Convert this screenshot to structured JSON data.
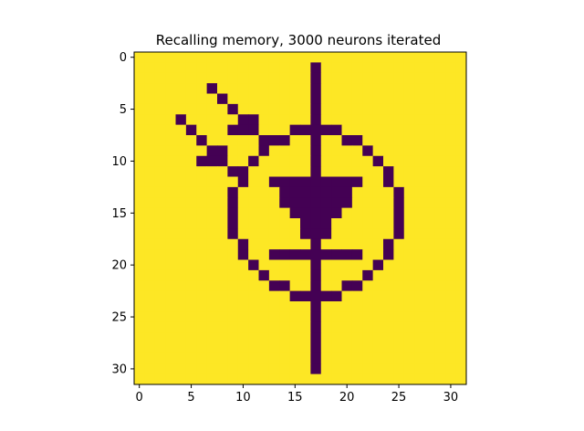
{
  "chart_data": {
    "type": "heatmap",
    "title": "Recalling memory, 3000 neurons iterated",
    "xlabel": "",
    "ylabel": "",
    "xlim": [
      -0.5,
      31.5
    ],
    "ylim": [
      31.5,
      -0.5
    ],
    "x_ticks": [
      0,
      5,
      10,
      15,
      20,
      25,
      30
    ],
    "y_ticks": [
      0,
      5,
      10,
      15,
      20,
      25,
      30
    ],
    "colors": {
      "low": "#440154",
      "high": "#fde725"
    },
    "grid": false,
    "rows": 32,
    "cols": 32,
    "low_cells": [
      [
        1,
        17
      ],
      [
        2,
        17
      ],
      [
        3,
        7
      ],
      [
        3,
        17
      ],
      [
        4,
        8
      ],
      [
        4,
        17
      ],
      [
        5,
        9
      ],
      [
        5,
        17
      ],
      [
        6,
        4
      ],
      [
        6,
        10
      ],
      [
        6,
        11
      ],
      [
        6,
        17
      ],
      [
        7,
        5
      ],
      [
        7,
        9
      ],
      [
        7,
        10
      ],
      [
        7,
        11
      ],
      [
        7,
        15
      ],
      [
        7,
        16
      ],
      [
        7,
        17
      ],
      [
        7,
        18
      ],
      [
        7,
        19
      ],
      [
        8,
        6
      ],
      [
        8,
        12
      ],
      [
        8,
        13
      ],
      [
        8,
        14
      ],
      [
        8,
        17
      ],
      [
        8,
        20
      ],
      [
        8,
        21
      ],
      [
        9,
        7
      ],
      [
        9,
        8
      ],
      [
        9,
        12
      ],
      [
        9,
        17
      ],
      [
        9,
        22
      ],
      [
        10,
        6
      ],
      [
        10,
        7
      ],
      [
        10,
        8
      ],
      [
        10,
        11
      ],
      [
        10,
        17
      ],
      [
        10,
        23
      ],
      [
        11,
        9
      ],
      [
        11,
        10
      ],
      [
        11,
        17
      ],
      [
        11,
        24
      ],
      [
        12,
        10
      ],
      [
        12,
        13
      ],
      [
        12,
        14
      ],
      [
        12,
        15
      ],
      [
        12,
        16
      ],
      [
        12,
        17
      ],
      [
        12,
        18
      ],
      [
        12,
        19
      ],
      [
        12,
        20
      ],
      [
        12,
        21
      ],
      [
        12,
        24
      ],
      [
        13,
        9
      ],
      [
        13,
        14
      ],
      [
        13,
        15
      ],
      [
        13,
        16
      ],
      [
        13,
        17
      ],
      [
        13,
        18
      ],
      [
        13,
        19
      ],
      [
        13,
        20
      ],
      [
        13,
        25
      ],
      [
        14,
        9
      ],
      [
        14,
        14
      ],
      [
        14,
        15
      ],
      [
        14,
        16
      ],
      [
        14,
        17
      ],
      [
        14,
        18
      ],
      [
        14,
        19
      ],
      [
        14,
        20
      ],
      [
        14,
        25
      ],
      [
        15,
        9
      ],
      [
        15,
        15
      ],
      [
        15,
        16
      ],
      [
        15,
        17
      ],
      [
        15,
        18
      ],
      [
        15,
        19
      ],
      [
        15,
        25
      ],
      [
        16,
        9
      ],
      [
        16,
        16
      ],
      [
        16,
        17
      ],
      [
        16,
        18
      ],
      [
        16,
        25
      ],
      [
        17,
        9
      ],
      [
        17,
        16
      ],
      [
        17,
        17
      ],
      [
        17,
        18
      ],
      [
        17,
        25
      ],
      [
        18,
        10
      ],
      [
        18,
        17
      ],
      [
        18,
        24
      ],
      [
        19,
        10
      ],
      [
        19,
        13
      ],
      [
        19,
        14
      ],
      [
        19,
        15
      ],
      [
        19,
        16
      ],
      [
        19,
        17
      ],
      [
        19,
        18
      ],
      [
        19,
        19
      ],
      [
        19,
        20
      ],
      [
        19,
        21
      ],
      [
        19,
        24
      ],
      [
        20,
        11
      ],
      [
        20,
        17
      ],
      [
        20,
        23
      ],
      [
        21,
        12
      ],
      [
        21,
        17
      ],
      [
        21,
        22
      ],
      [
        22,
        13
      ],
      [
        22,
        14
      ],
      [
        22,
        17
      ],
      [
        22,
        20
      ],
      [
        22,
        21
      ],
      [
        23,
        15
      ],
      [
        23,
        16
      ],
      [
        23,
        17
      ],
      [
        23,
        18
      ],
      [
        23,
        19
      ],
      [
        24,
        17
      ],
      [
        25,
        17
      ],
      [
        26,
        17
      ],
      [
        27,
        17
      ],
      [
        28,
        17
      ],
      [
        29,
        17
      ],
      [
        30,
        17
      ]
    ]
  }
}
